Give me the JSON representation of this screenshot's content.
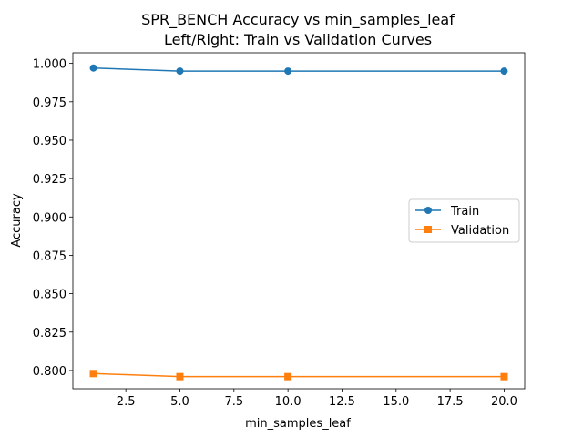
{
  "chart_data": {
    "type": "line",
    "title_line1": "SPR_BENCH Accuracy vs min_samples_leaf",
    "title_line2": "Left/Right: Train vs Validation Curves",
    "xlabel": "min_samples_leaf",
    "ylabel": "Accuracy",
    "x": [
      1,
      5,
      10,
      20
    ],
    "xlim": [
      0.05,
      20.95
    ],
    "ylim": [
      0.7881,
      1.0069
    ],
    "xticks": [
      2.5,
      5.0,
      7.5,
      10.0,
      12.5,
      15.0,
      17.5,
      20.0
    ],
    "xtick_labels": [
      "2.5",
      "5.0",
      "7.5",
      "10.0",
      "12.5",
      "15.0",
      "17.5",
      "20.0"
    ],
    "yticks": [
      0.8,
      0.825,
      0.85,
      0.875,
      0.9,
      0.925,
      0.95,
      0.975,
      1.0
    ],
    "ytick_labels": [
      "0.800",
      "0.825",
      "0.850",
      "0.875",
      "0.900",
      "0.925",
      "0.950",
      "0.975",
      "1.000"
    ],
    "grid": false,
    "legend_position": "center-right",
    "series": [
      {
        "name": "Train",
        "values": [
          0.997,
          0.995,
          0.995,
          0.995
        ],
        "color": "#1f77b4",
        "marker": "circle"
      },
      {
        "name": "Validation",
        "values": [
          0.798,
          0.796,
          0.796,
          0.796
        ],
        "color": "#ff7f0e",
        "marker": "square"
      }
    ]
  }
}
